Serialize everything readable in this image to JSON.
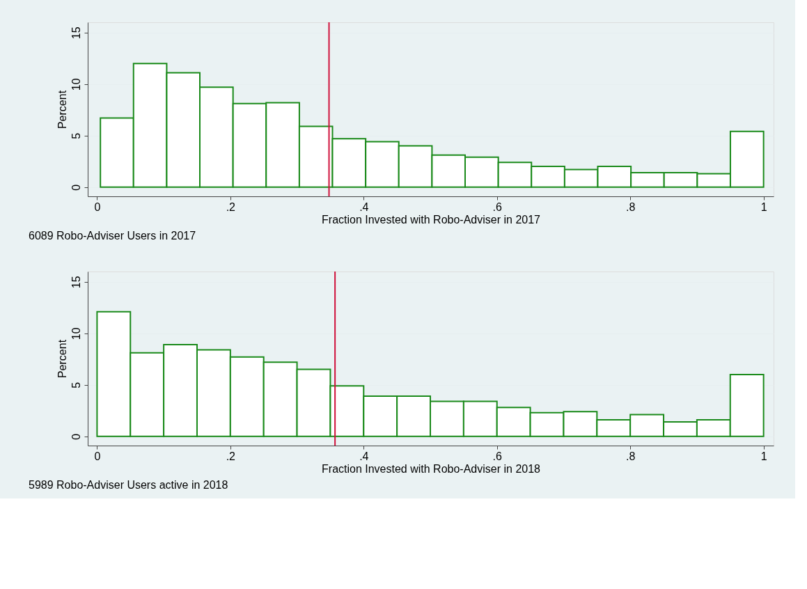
{
  "chart_data": [
    {
      "type": "histogram",
      "xlabel": "Fraction Invested with Robo-Adviser in 2017",
      "ylabel": "Percent",
      "color": "#1a8a1a",
      "bins": [
        0.005,
        0.0547,
        0.1045,
        0.1542,
        0.204,
        0.2537,
        0.3035,
        0.3532,
        0.403,
        0.4527,
        0.5025,
        0.5522,
        0.602,
        0.6517,
        0.7015,
        0.7512,
        0.801,
        0.8507,
        0.9005,
        0.9502,
        1.0
      ],
      "values": [
        6.7,
        12.0,
        11.1,
        9.7,
        8.1,
        8.2,
        5.9,
        4.7,
        4.4,
        4.0,
        3.1,
        2.9,
        2.4,
        2.0,
        1.7,
        2.0,
        1.4,
        1.4,
        1.3,
        5.4
      ],
      "xlim": [
        -0.014,
        1.015
      ],
      "ylim": [
        -0.9,
        16
      ],
      "xticks": [
        0,
        {
          "value": 0.2,
          "label": ".2"
        },
        {
          "value": 0.4,
          "label": ".4"
        },
        {
          "value": 0.6,
          "label": ".6"
        },
        {
          "value": 0.8,
          "label": ".8"
        },
        1
      ],
      "yticks": [
        0,
        5,
        10,
        15
      ],
      "grid": "y",
      "ref_lines": [
        {
          "axis": "x",
          "value": 0.348,
          "color": "#d0103a"
        }
      ],
      "annotations": [
        "6089 Robo-Adviser Users in 2017"
      ]
    },
    {
      "type": "histogram",
      "xlabel": "Fraction Invested with Robo-Adviser in 2018",
      "ylabel": "Percent",
      "color": "#1a8a1a",
      "bins": [
        0,
        0.05,
        0.1,
        0.15,
        0.2,
        0.25,
        0.3,
        0.35,
        0.4,
        0.45,
        0.5,
        0.55,
        0.6,
        0.65,
        0.7,
        0.75,
        0.8,
        0.85,
        0.9,
        0.95,
        1.0
      ],
      "values": [
        12.1,
        8.1,
        8.9,
        8.4,
        7.7,
        7.2,
        6.5,
        4.9,
        3.9,
        3.9,
        3.4,
        3.4,
        2.8,
        2.3,
        2.4,
        1.6,
        2.1,
        1.4,
        1.6,
        6.0
      ],
      "xlim": [
        -0.014,
        1.015
      ],
      "ylim": [
        -0.9,
        16
      ],
      "xticks": [
        0,
        {
          "value": 0.2,
          "label": ".2"
        },
        {
          "value": 0.4,
          "label": ".4"
        },
        {
          "value": 0.6,
          "label": ".6"
        },
        {
          "value": 0.8,
          "label": ".8"
        },
        1
      ],
      "yticks": [
        0,
        5,
        10,
        15
      ],
      "grid": "y",
      "ref_lines": [
        {
          "axis": "x",
          "value": 0.357,
          "color": "#d0103a"
        }
      ],
      "annotations": [
        "5989 Robo-Adviser Users active in 2018"
      ]
    }
  ]
}
